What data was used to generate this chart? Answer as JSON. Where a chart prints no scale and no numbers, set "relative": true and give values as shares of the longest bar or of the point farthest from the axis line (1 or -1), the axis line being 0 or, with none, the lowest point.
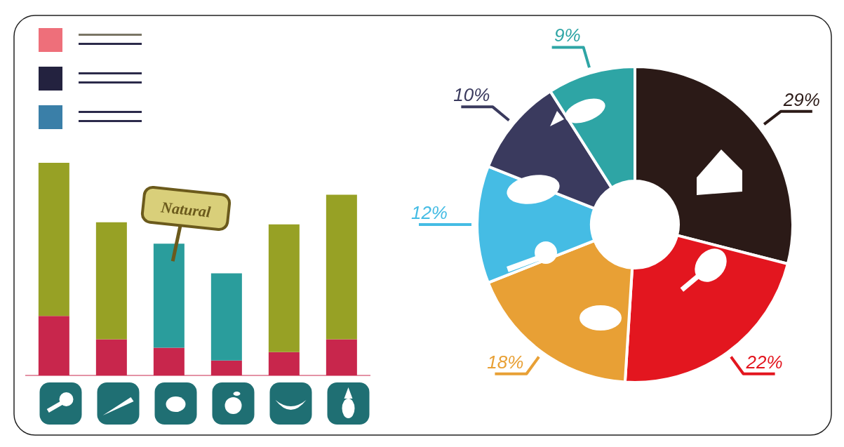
{
  "chart_data": [
    {
      "type": "bar",
      "stacked": true,
      "relative": true,
      "categories": [
        null,
        null,
        null,
        null,
        null,
        null
      ],
      "series": [
        {
          "color": "#c8264c",
          "values": [
            0.28,
            0.17,
            0.13,
            0.07,
            0.11,
            0.17
          ]
        },
        {
          "colors": [
            "#97a125",
            "#97a125",
            "#2a9d9c",
            "#2a9d9c",
            "#97a125",
            "#97a125"
          ],
          "values": [
            0.72,
            0.55,
            0.49,
            0.41,
            0.6,
            0.68
          ]
        }
      ],
      "annotations": [
        "Natural"
      ]
    },
    {
      "type": "donut",
      "categories": [
        null,
        null,
        null,
        null,
        null,
        null
      ],
      "values": [
        29,
        22,
        18,
        12,
        10,
        9
      ],
      "colors": [
        "#2b1a17",
        "#e3161f",
        "#e8a035",
        "#45bce4",
        "#3a3a5e",
        "#2ea5a5"
      ],
      "value_labels": [
        "29%",
        "22%",
        "18%",
        "12%",
        "10%",
        "9%"
      ]
    }
  ]
}
